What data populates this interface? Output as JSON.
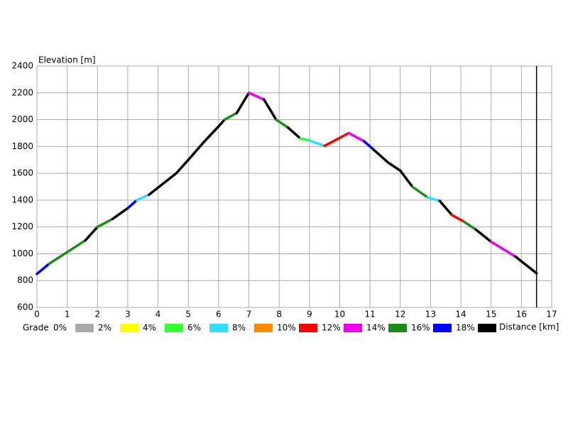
{
  "chart_data": {
    "type": "grade-profile",
    "y_label": "Elevation [m]",
    "x_label": "Distance [km]",
    "legend_title": "Grade",
    "x": [
      0,
      0.4,
      1.6,
      2.0,
      2.5,
      3.0,
      3.3,
      3.7,
      4.6,
      5.0,
      5.5,
      6.0,
      6.2,
      6.6,
      7.0,
      7.5,
      7.9,
      8.3,
      8.7,
      9.0,
      9.5,
      10.3,
      10.8,
      11.1,
      11.6,
      12.0,
      12.4,
      12.9,
      13.3,
      13.7,
      14.1,
      14.5,
      15.0,
      15.8,
      16.5
    ],
    "values": [
      850,
      925,
      1100,
      1200,
      1260,
      1340,
      1400,
      1440,
      1600,
      1700,
      1830,
      1950,
      2000,
      2050,
      2200,
      2150,
      2000,
      1940,
      1860,
      1845,
      1805,
      1900,
      1840,
      1780,
      1680,
      1620,
      1500,
      1420,
      1395,
      1290,
      1240,
      1180,
      1090,
      980,
      855
    ],
    "grades": [
      null,
      16,
      14,
      18,
      14,
      18,
      16,
      6,
      18,
      18,
      18,
      18,
      18,
      14,
      18,
      12,
      18,
      14,
      18,
      4,
      6,
      10,
      12,
      16,
      18,
      18,
      18,
      14,
      6,
      18,
      10,
      14,
      18,
      12,
      18
    ],
    "legend": [
      {
        "value": 0,
        "label": "0%",
        "color": "#aaaaaa"
      },
      {
        "value": 2,
        "label": "2%",
        "color": "#ffff00"
      },
      {
        "value": 4,
        "label": "4%",
        "color": "#33ff33"
      },
      {
        "value": 6,
        "label": "6%",
        "color": "#33ddff"
      },
      {
        "value": 8,
        "label": "8%",
        "color": "#ff8800"
      },
      {
        "value": 10,
        "label": "10%",
        "color": "#ff0000"
      },
      {
        "value": 12,
        "label": "12%",
        "color": "#ee00ee"
      },
      {
        "value": 14,
        "label": "14%",
        "color": "#1a8c1a"
      },
      {
        "value": 16,
        "label": "16%",
        "color": "#0000ff"
      },
      {
        "value": 18,
        "label": "18%",
        "color": "#000000"
      }
    ],
    "marker_x": 16.5,
    "xlim": [
      0,
      17
    ],
    "xticks": [
      0,
      1,
      2,
      3,
      4,
      5,
      6,
      7,
      8,
      9,
      10,
      11,
      12,
      13,
      14,
      15,
      16,
      17
    ],
    "ylim": [
      600,
      2400
    ],
    "yticks": [
      600,
      800,
      1000,
      1200,
      1400,
      1600,
      1800,
      2000,
      2200,
      2400
    ],
    "grid": true
  }
}
